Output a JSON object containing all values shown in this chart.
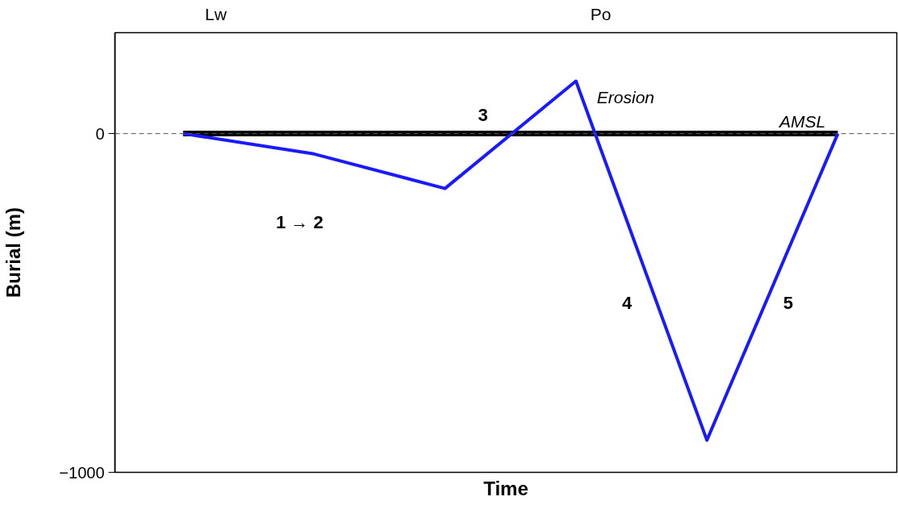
{
  "chart_data": {
    "type": "line",
    "xlabel": "Time",
    "ylabel": "Burial (m)",
    "categories": [
      null,
      null,
      null,
      null,
      null,
      null
    ],
    "series": [
      {
        "color": "#000000",
        "values": [
          0,
          0,
          0,
          0,
          0,
          0
        ]
      },
      {
        "color": "#1a1aff",
        "values": [
          0,
          -60,
          -162,
          155,
          -905,
          0
        ]
      }
    ],
    "ylim": [
      -1000,
      298
    ],
    "yticks": [
      -1000,
      0
    ],
    "ref_lines": [
      {
        "axis": "y",
        "value": 0,
        "color": "#555555",
        "line_style": "dashed"
      }
    ],
    "annotations": [
      "Lw",
      "Po",
      "1 → 2",
      "3",
      "Erosion",
      "AMSL",
      "4",
      "5"
    ],
    "grid": false,
    "marker": "none",
    "line_style": "solid"
  }
}
